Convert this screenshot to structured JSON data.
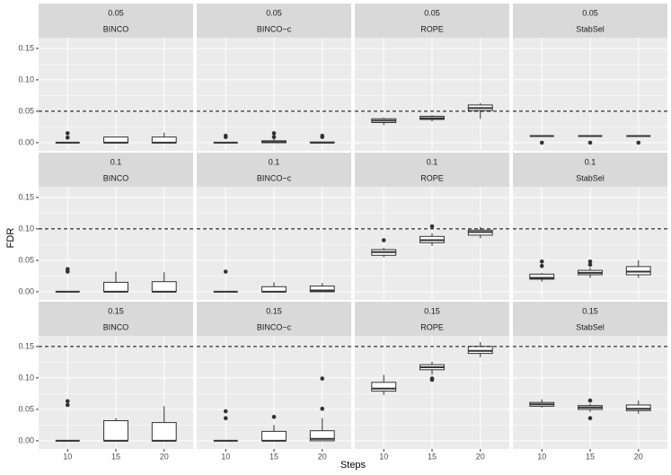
{
  "chart_data": {
    "type": "boxplot",
    "x_label": "Steps",
    "y_label": "FDR",
    "categories": [
      "10",
      "15",
      "20"
    ],
    "ylim": [
      -0.013,
      0.167
    ],
    "yticks": [
      {
        "value": 0,
        "label": "0.00"
      },
      {
        "value": 0.05,
        "label": "0.05"
      },
      {
        "value": 0.1,
        "label": "0.10"
      },
      {
        "value": 0.15,
        "label": "0.15"
      }
    ],
    "grid": true,
    "box_color": "#ffffff",
    "line_color": "#333333",
    "facets": [
      {
        "level": "0.05",
        "method": "BINCO",
        "reference": 0.05,
        "boxes": [
          {
            "min": 0,
            "q1": 0,
            "median": 0,
            "q3": 0,
            "max": 0,
            "outliers": [
              0.008,
              0.015
            ]
          },
          {
            "min": 0,
            "q1": 0,
            "median": 0,
            "q3": 0.009,
            "max": 0.009,
            "outliers": []
          },
          {
            "min": 0,
            "q1": 0,
            "median": 0,
            "q3": 0.009,
            "max": 0.016,
            "outliers": []
          }
        ]
      },
      {
        "level": "0.05",
        "method": "BINCO−c",
        "reference": 0.05,
        "boxes": [
          {
            "min": 0,
            "q1": 0,
            "median": 0,
            "q3": 0,
            "max": 0,
            "outliers": [
              0.009,
              0.011
            ]
          },
          {
            "min": 0,
            "q1": 0,
            "median": 0.001,
            "q3": 0.003,
            "max": 0.006,
            "outliers": [
              0.009,
              0.015
            ]
          },
          {
            "min": 0,
            "q1": 0,
            "median": 0,
            "q3": 0.001,
            "max": 0.001,
            "outliers": [
              0.009,
              0.011
            ]
          }
        ]
      },
      {
        "level": "0.05",
        "method": "ROPE",
        "reference": 0.05,
        "boxes": [
          {
            "min": 0.028,
            "q1": 0.032,
            "median": 0.035,
            "q3": 0.038,
            "max": 0.04,
            "outliers": []
          },
          {
            "min": 0.034,
            "q1": 0.037,
            "median": 0.039,
            "q3": 0.042,
            "max": 0.044,
            "outliers": []
          },
          {
            "min": 0.038,
            "q1": 0.051,
            "median": 0.055,
            "q3": 0.06,
            "max": 0.063,
            "outliers": []
          }
        ]
      },
      {
        "level": "0.05",
        "method": "StabSel",
        "reference": 0.05,
        "boxes": [
          {
            "min": 0.0105,
            "q1": 0.0105,
            "median": 0.0105,
            "q3": 0.0105,
            "max": 0.0105,
            "outliers": [
              0
            ]
          },
          {
            "min": 0.0105,
            "q1": 0.0105,
            "median": 0.0105,
            "q3": 0.0105,
            "max": 0.0105,
            "outliers": [
              0
            ]
          },
          {
            "min": 0.0105,
            "q1": 0.0105,
            "median": 0.0105,
            "q3": 0.0105,
            "max": 0.0105,
            "outliers": [
              0
            ]
          }
        ]
      },
      {
        "level": "0.1",
        "method": "BINCO",
        "reference": 0.1,
        "boxes": [
          {
            "min": 0,
            "q1": 0,
            "median": 0,
            "q3": 0,
            "max": 0,
            "outliers": [
              0.032,
              0.036
            ]
          },
          {
            "min": 0,
            "q1": 0,
            "median": 0,
            "q3": 0.015,
            "max": 0.032,
            "outliers": []
          },
          {
            "min": 0,
            "q1": 0,
            "median": 0,
            "q3": 0.016,
            "max": 0.031,
            "outliers": []
          }
        ]
      },
      {
        "level": "0.1",
        "method": "BINCO−c",
        "reference": 0.1,
        "boxes": [
          {
            "min": 0,
            "q1": 0,
            "median": 0,
            "q3": 0,
            "max": 0,
            "outliers": [
              0.032
            ]
          },
          {
            "min": 0,
            "q1": 0,
            "median": 0,
            "q3": 0.008,
            "max": 0.015,
            "outliers": []
          },
          {
            "min": 0,
            "q1": 0,
            "median": 0.002,
            "q3": 0.009,
            "max": 0.014,
            "outliers": []
          }
        ]
      },
      {
        "level": "0.1",
        "method": "ROPE",
        "reference": 0.1,
        "boxes": [
          {
            "min": 0.055,
            "q1": 0.058,
            "median": 0.063,
            "q3": 0.067,
            "max": 0.07,
            "outliers": [
              0.082
            ]
          },
          {
            "min": 0.073,
            "q1": 0.078,
            "median": 0.082,
            "q3": 0.088,
            "max": 0.093,
            "outliers": [
              0.104
            ]
          },
          {
            "min": 0.085,
            "q1": 0.09,
            "median": 0.095,
            "q3": 0.098,
            "max": 0.103,
            "outliers": []
          }
        ]
      },
      {
        "level": "0.1",
        "method": "StabSel",
        "reference": 0.1,
        "boxes": [
          {
            "min": 0.016,
            "q1": 0.02,
            "median": 0.022,
            "q3": 0.028,
            "max": 0.03,
            "outliers": [
              0.041,
              0.048
            ]
          },
          {
            "min": 0.022,
            "q1": 0.027,
            "median": 0.03,
            "q3": 0.034,
            "max": 0.038,
            "outliers": [
              0.043,
              0.048
            ]
          },
          {
            "min": 0.022,
            "q1": 0.027,
            "median": 0.032,
            "q3": 0.04,
            "max": 0.05,
            "outliers": []
          }
        ]
      },
      {
        "level": "0.15",
        "method": "BINCO",
        "reference": 0.15,
        "boxes": [
          {
            "min": 0,
            "q1": 0,
            "median": 0,
            "q3": 0,
            "max": 0,
            "outliers": [
              0.057,
              0.063
            ]
          },
          {
            "min": 0,
            "q1": 0,
            "median": 0,
            "q3": 0.032,
            "max": 0.036,
            "outliers": []
          },
          {
            "min": 0,
            "q1": 0,
            "median": 0,
            "q3": 0.029,
            "max": 0.055,
            "outliers": []
          }
        ]
      },
      {
        "level": "0.15",
        "method": "BINCO−c",
        "reference": 0.15,
        "boxes": [
          {
            "min": 0,
            "q1": 0,
            "median": 0,
            "q3": 0,
            "max": 0,
            "outliers": [
              0.036,
              0.047
            ]
          },
          {
            "min": 0,
            "q1": 0,
            "median": 0,
            "q3": 0.015,
            "max": 0.025,
            "outliers": [
              0.038
            ]
          },
          {
            "min": 0,
            "q1": 0,
            "median": 0.003,
            "q3": 0.016,
            "max": 0.036,
            "outliers": [
              0.051,
              0.099
            ]
          }
        ]
      },
      {
        "level": "0.15",
        "method": "ROPE",
        "reference": 0.15,
        "boxes": [
          {
            "min": 0.073,
            "q1": 0.079,
            "median": 0.083,
            "q3": 0.093,
            "max": 0.105,
            "outliers": []
          },
          {
            "min": 0.105,
            "q1": 0.113,
            "median": 0.117,
            "q3": 0.121,
            "max": 0.126,
            "outliers": [
              0.097,
              0.099
            ]
          },
          {
            "min": 0.133,
            "q1": 0.139,
            "median": 0.143,
            "q3": 0.15,
            "max": 0.157,
            "outliers": []
          }
        ]
      },
      {
        "level": "0.15",
        "method": "StabSel",
        "reference": 0.15,
        "boxes": [
          {
            "min": 0.053,
            "q1": 0.055,
            "median": 0.058,
            "q3": 0.061,
            "max": 0.066,
            "outliers": []
          },
          {
            "min": 0.046,
            "q1": 0.05,
            "median": 0.053,
            "q3": 0.056,
            "max": 0.059,
            "outliers": [
              0.036,
              0.064
            ]
          },
          {
            "min": 0.043,
            "q1": 0.048,
            "median": 0.051,
            "q3": 0.057,
            "max": 0.064,
            "outliers": []
          }
        ]
      }
    ]
  }
}
